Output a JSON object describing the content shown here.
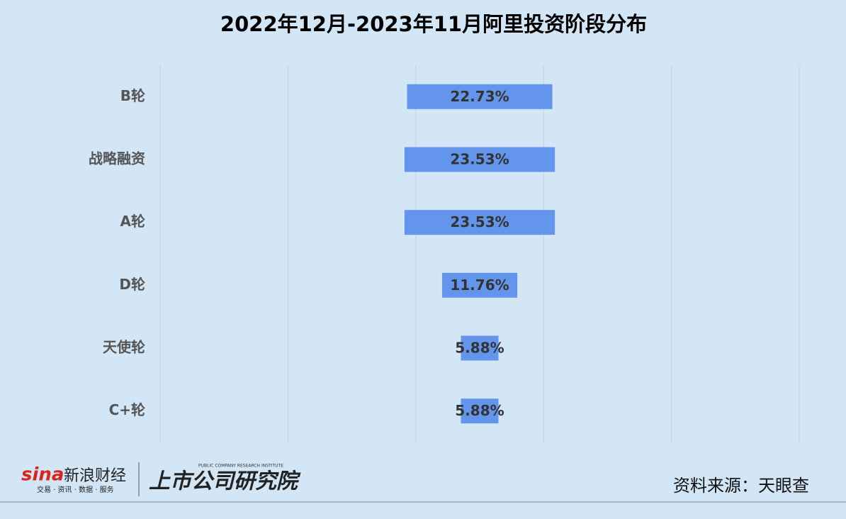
{
  "chart_data": {
    "type": "funnel",
    "title": "2022年12月-2023年11月阿里投资阶段分布",
    "categories": [
      "B轮",
      "战略融资",
      "A轮",
      "D轮",
      "天使轮",
      "C+轮"
    ],
    "values": [
      22.73,
      23.53,
      23.53,
      11.76,
      5.88,
      5.88
    ],
    "value_labels": [
      "22.73%",
      "23.53%",
      "23.53%",
      "11.76%",
      "5.88%",
      "5.88%"
    ],
    "color": "#6495ed",
    "xlim": [
      -50,
      50
    ],
    "xticks": [
      -50,
      -30,
      -10,
      10,
      30,
      50
    ],
    "grid": true
  },
  "footer": {
    "brand": "新浪财经",
    "brand_logo": "sina",
    "brand_tagline": "交易 · 资讯 · 数据 · 服务",
    "institute": "上市公司研究院",
    "institute_en": "PUBLIC COMPANY RESEARCH INSTITUTE",
    "source": "资料来源：天眼查"
  }
}
